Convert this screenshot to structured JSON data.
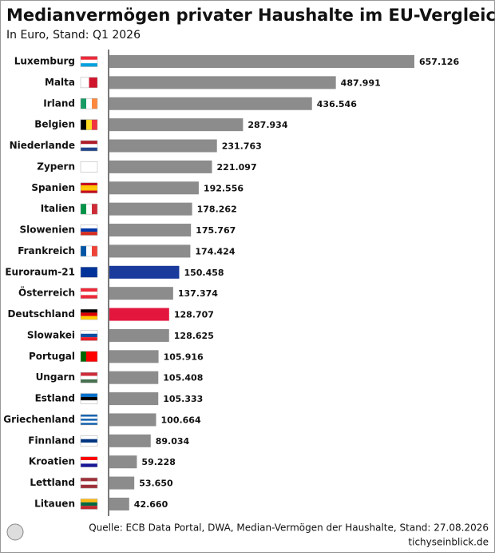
{
  "chart_data": {
    "type": "hbar",
    "title": "Medianvermögen privater Haushalte im EU-Vergleich",
    "subtitle": "In Euro, Stand: Q1 2026",
    "categories": [
      "Luxemburg",
      "Malta",
      "Irland",
      "Belgien",
      "Niederlande",
      "Zypern",
      "Spanien",
      "Italien",
      "Slowenien",
      "Frankreich",
      "Euroraum-21",
      "Österreich",
      "Deutschland",
      "Slowakei",
      "Portugal",
      "Ungarn",
      "Estland",
      "Griechenland",
      "Finnland",
      "Kroatien",
      "Lettland",
      "Litauen"
    ],
    "values": [
      657126,
      487991,
      436546,
      287934,
      231763,
      221097,
      192556,
      178262,
      175767,
      174424,
      150458,
      137374,
      128707,
      128625,
      105916,
      105408,
      105333,
      100664,
      89034,
      59228,
      53650,
      42660
    ],
    "value_labels": [
      "657.126",
      "487.991",
      "436.546",
      "287.934",
      "231.763",
      "221.097",
      "192.556",
      "178.262",
      "175.767",
      "174.424",
      "150.458",
      "137.374",
      "128.707",
      "128.625",
      "105.916",
      "105.408",
      "105.333",
      "100.664",
      "89.034",
      "59.228",
      "53.650",
      "42.660"
    ],
    "colors": [
      "#8c8c8c",
      "#8c8c8c",
      "#8c8c8c",
      "#8c8c8c",
      "#8c8c8c",
      "#8c8c8c",
      "#8c8c8c",
      "#8c8c8c",
      "#8c8c8c",
      "#8c8c8c",
      "#1a3a9c",
      "#8c8c8c",
      "#e3173e",
      "#8c8c8c",
      "#8c8c8c",
      "#8c8c8c",
      "#8c8c8c",
      "#8c8c8c",
      "#8c8c8c",
      "#8c8c8c",
      "#8c8c8c",
      "#8c8c8c"
    ],
    "source": "Quelle: ECB Data Portal, DWA, Median-Vermögen der Haushalte, Stand: 27.08.2026",
    "brand": "tichyseinblick.de"
  }
}
